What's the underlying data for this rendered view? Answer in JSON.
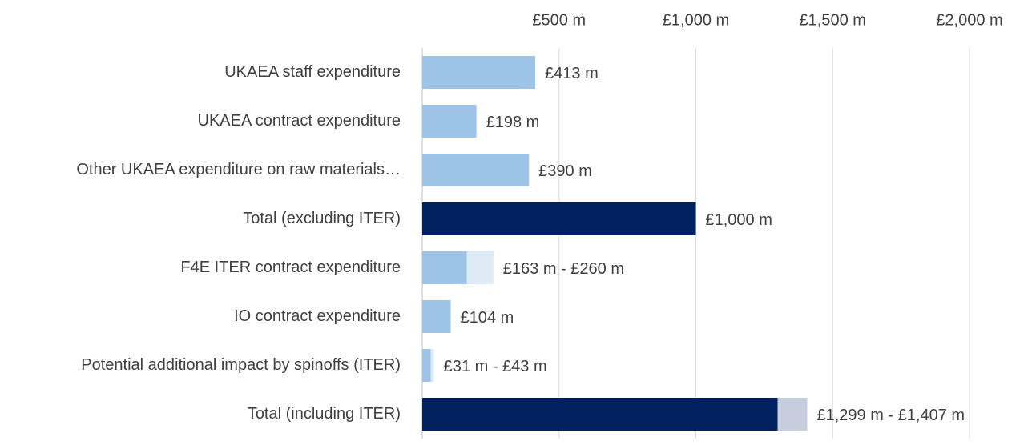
{
  "chart_data": {
    "type": "range_bar",
    "categories": [
      "UKAEA staff expenditure",
      "UKAEA contract expenditure",
      "Other UKAEA expenditure on raw materials…",
      "Total (excluding ITER)",
      "F4E ITER contract expenditure",
      "IO contract expenditure",
      "Potential additional impact by spinoffs (ITER)",
      "Total (including ITER)"
    ],
    "values": [
      413,
      198,
      390,
      1000,
      163,
      104,
      31,
      1299
    ],
    "high": [
      null,
      null,
      null,
      null,
      260,
      null,
      43,
      1407
    ],
    "value_labels": [
      "£413 m",
      "£198 m",
      "£390 m",
      "£1,000 m",
      "£163 m -   £260 m",
      "£104 m",
      "£31 m -   £43 m",
      "£1,299 m -  £1,407 m"
    ],
    "colors": [
      "#9dc3e6",
      "#9dc3e6",
      "#9dc3e6",
      "#002060",
      "#9dc3e6",
      "#9dc3e6",
      "#9dc3e6",
      "#002060"
    ],
    "range_colors": [
      null,
      null,
      null,
      null,
      "#deebf7",
      null,
      "#deebf7",
      "#c6cddd"
    ],
    "xlim": [
      0,
      2000
    ],
    "xticks": [
      {
        "value": 500,
        "label": "£500 m"
      },
      {
        "value": 1000,
        "label": "£1,000 m"
      },
      {
        "value": 1500,
        "label": "£1,500 m"
      },
      {
        "value": 2000,
        "label": "£2,000 m"
      }
    ],
    "grid": true
  }
}
